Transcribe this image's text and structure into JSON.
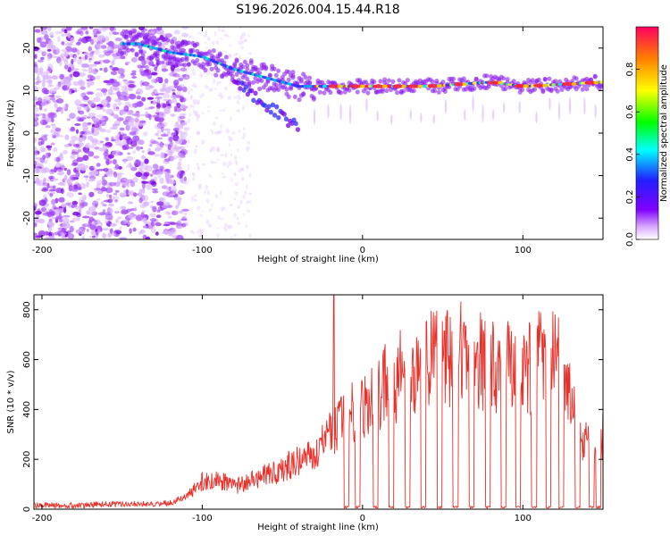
{
  "figure": {
    "title": "S196.2026.004.15.44.R18"
  },
  "chart_data": [
    {
      "type": "heatmap",
      "xlabel": "Height of straight line (km)",
      "ylabel": "Frequency (Hz)",
      "xlim": [
        -205,
        150
      ],
      "ylim": [
        -25,
        25
      ],
      "xticks": [
        -200,
        -100,
        0,
        100
      ],
      "yticks": [
        -20,
        -10,
        0,
        10,
        20
      ],
      "colorbar": {
        "label": "Normalized spectral amplitude",
        "range": [
          0,
          1
        ],
        "ticks": [
          0.0,
          0.2,
          0.4,
          0.6,
          0.8
        ]
      },
      "ridge": [
        {
          "x": -140,
          "y": 21
        },
        {
          "x": -120,
          "y": 19
        },
        {
          "x": -100,
          "y": 18
        },
        {
          "x": -80,
          "y": 15
        },
        {
          "x": -60,
          "y": 13
        },
        {
          "x": -40,
          "y": 11
        },
        {
          "x": -20,
          "y": 11
        },
        {
          "x": 0,
          "y": 11
        },
        {
          "x": 40,
          "y": 11
        },
        {
          "x": 80,
          "y": 12
        },
        {
          "x": 100,
          "y": 11
        },
        {
          "x": 150,
          "y": 12
        }
      ],
      "secondary_branch": [
        {
          "x": -80,
          "y": 12
        },
        {
          "x": -65,
          "y": 8
        },
        {
          "x": -50,
          "y": 4
        },
        {
          "x": -40,
          "y": 1
        }
      ]
    },
    {
      "type": "line",
      "xlabel": "Height of straight line (km)",
      "ylabel": "SNR (10 * v/v)",
      "xlim": [
        -205,
        150
      ],
      "ylim": [
        0,
        860
      ],
      "xticks": [
        -200,
        -100,
        0,
        100
      ],
      "yticks": [
        0,
        200,
        400,
        600,
        800
      ],
      "series": [
        {
          "color": "#e8302a",
          "x": [
            -205,
            -180,
            -160,
            -140,
            -120,
            -110,
            -100,
            -90,
            -80,
            -70,
            -60,
            -50,
            -40,
            -30,
            -20,
            -10,
            0,
            10,
            20,
            40,
            60,
            80,
            100,
            110,
            120,
            130,
            140,
            150
          ],
          "y": [
            15,
            15,
            20,
            20,
            25,
            50,
            110,
            120,
            90,
            110,
            140,
            160,
            200,
            220,
            300,
            380,
            430,
            480,
            520,
            600,
            620,
            580,
            560,
            600,
            620,
            420,
            250,
            300
          ]
        }
      ],
      "spike": {
        "x": -18,
        "y": 860
      },
      "dropouts": [
        -10,
        -3,
        8,
        18,
        28,
        38,
        48,
        58,
        68,
        78,
        88,
        97,
        107,
        116,
        124,
        134,
        143,
        147
      ]
    }
  ]
}
